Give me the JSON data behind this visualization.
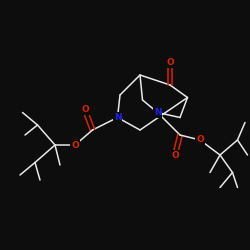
{
  "background_color": "#0d0d0d",
  "bond_color": "#e8e8e8",
  "atom_colors": {
    "O": "#dd2200",
    "N": "#2222ee",
    "C": "#e8e8e8"
  },
  "figsize": [
    2.5,
    2.5
  ],
  "dpi": 100
}
